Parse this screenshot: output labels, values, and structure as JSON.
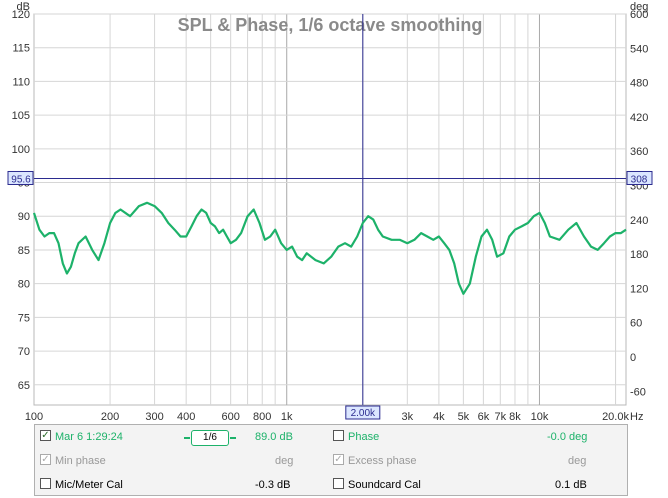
{
  "chart_data": {
    "type": "line",
    "title": "SPL & Phase, 1/6 octave smoothing",
    "left_axis_label": "dB",
    "right_axis_label": "deg",
    "x_unit": "Hz",
    "xscale": "log",
    "xlim": [
      100,
      22000
    ],
    "ylim": [
      62,
      120
    ],
    "right_ylim": [
      -84,
      600
    ],
    "y_ticks": [
      65,
      70,
      75,
      80,
      85,
      90,
      95,
      100,
      105,
      110,
      115,
      120
    ],
    "right_ticks": [
      -60,
      0,
      60,
      120,
      180,
      240,
      300,
      360,
      420,
      480,
      540,
      600
    ],
    "x_ticks": [
      {
        "value": 100,
        "label": "100"
      },
      {
        "value": 200,
        "label": "200"
      },
      {
        "value": 300,
        "label": "300"
      },
      {
        "value": 400,
        "label": "400"
      },
      {
        "value": 600,
        "label": "600"
      },
      {
        "value": 800,
        "label": "800"
      },
      {
        "value": 1000,
        "label": "1k"
      },
      {
        "value": 3000,
        "label": "3k"
      },
      {
        "value": 4000,
        "label": "4k"
      },
      {
        "value": 5000,
        "label": "5k"
      },
      {
        "value": 6000,
        "label": "6k"
      },
      {
        "value": 7000,
        "label": "7k"
      },
      {
        "value": 8000,
        "label": "8k"
      },
      {
        "value": 10000,
        "label": "10k"
      },
      {
        "value": 20000,
        "label": "20.0k"
      }
    ],
    "cursor": {
      "x": 2000,
      "x_label": "2.00k",
      "y": 95.6,
      "y_label": "95.6",
      "right_label": "308"
    },
    "grid": true,
    "series": [
      {
        "color": "#1db26a",
        "x": [
          100,
          105,
          110,
          115,
          120,
          125,
          130,
          135,
          140,
          145,
          150,
          160,
          170,
          180,
          190,
          200,
          210,
          220,
          240,
          260,
          280,
          300,
          320,
          340,
          360,
          380,
          400,
          420,
          440,
          460,
          480,
          500,
          520,
          540,
          560,
          580,
          600,
          630,
          660,
          700,
          740,
          780,
          820,
          860,
          900,
          950,
          1000,
          1050,
          1100,
          1150,
          1200,
          1300,
          1400,
          1500,
          1600,
          1700,
          1800,
          1900,
          2000,
          2100,
          2200,
          2300,
          2400,
          2600,
          2800,
          3000,
          3200,
          3400,
          3600,
          3800,
          4000,
          4200,
          4400,
          4600,
          4800,
          5000,
          5300,
          5600,
          5900,
          6200,
          6500,
          6800,
          7200,
          7600,
          8000,
          8500,
          9000,
          9500,
          10000,
          10500,
          11000,
          12000,
          13000,
          14000,
          15000,
          16000,
          17000,
          18000,
          19000,
          20000,
          21000,
          22000
        ],
        "values": [
          90.5,
          88,
          87,
          87.5,
          87.5,
          86,
          83,
          81.5,
          82.5,
          84.5,
          86,
          87,
          85,
          83.5,
          86,
          89,
          90.5,
          91,
          90,
          91.5,
          92,
          91.5,
          90.5,
          89,
          88,
          87,
          87,
          88.5,
          90,
          91,
          90.5,
          89,
          88.5,
          87.5,
          88,
          87,
          86,
          86.5,
          87.5,
          90,
          91,
          89,
          86.5,
          87,
          88,
          86,
          85,
          85.5,
          84,
          83.5,
          84.5,
          83.5,
          83,
          84,
          85.5,
          86,
          85.5,
          87,
          89,
          90,
          89.5,
          88,
          87,
          86.5,
          86.5,
          86,
          86.5,
          87.5,
          87,
          86.5,
          87,
          86,
          85,
          83,
          80,
          78.5,
          80,
          84,
          87,
          88,
          86.5,
          84,
          84.5,
          87,
          88,
          88.5,
          89,
          90,
          90.5,
          89,
          87,
          86.5,
          88,
          89,
          87,
          85.5,
          85,
          86,
          87,
          87.5,
          87.5,
          88
        ]
      }
    ]
  },
  "legend": {
    "spl_label": "Mar 6 1:29:24",
    "spl_smoothing": "1/6",
    "spl_value": "89.0 dB",
    "phase_label": "Phase",
    "phase_value": "-0.0 deg",
    "min_phase_label": "Min phase",
    "min_phase_value": "deg",
    "excess_phase_label": "Excess phase",
    "excess_phase_value": "deg",
    "mic_cal_label": "Mic/Meter Cal",
    "mic_cal_value": "-0.3 dB",
    "soundcard_cal_label": "Soundcard Cal",
    "soundcard_cal_value": "0.1 dB",
    "check_mark": "✓"
  },
  "colors": {
    "curve": "#1db26a",
    "cursor": "#2b2b8f",
    "grid": "#d0d0d0"
  }
}
